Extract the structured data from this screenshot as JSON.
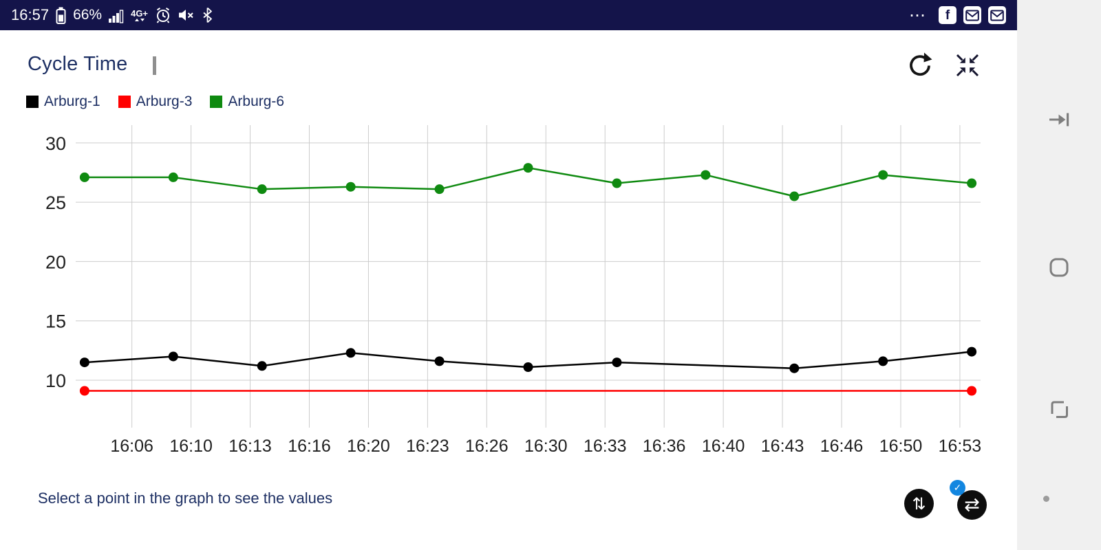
{
  "status_bar": {
    "time": "16:57",
    "battery_percent": "66%",
    "network_label": "4G+",
    "overflow_glyph": "⋯",
    "facebook_glyph": "f"
  },
  "header": {
    "title": "Cycle Time",
    "actions": [
      "refresh",
      "collapse"
    ]
  },
  "legend": [
    {
      "label": "Arburg-1",
      "color": "#000000"
    },
    {
      "label": "Arburg-3",
      "color": "#ff0000"
    },
    {
      "label": "Arburg-6",
      "color": "#0f8a10"
    }
  ],
  "footer": {
    "hint": "Select a point in the graph to see the values",
    "swap_vertical_glyph": "⇅",
    "swap_horizontal_glyph": "⇄",
    "check_glyph": "✓"
  },
  "chart_data": {
    "type": "line",
    "title": "Cycle Time",
    "grid": true,
    "legend_position": "top",
    "x_axis": {
      "type": "time",
      "xlim": [
        "16:03:30",
        "16:54:30"
      ],
      "tick_times": [
        "16:06:40",
        "16:10:00",
        "16:13:20",
        "16:16:40",
        "16:20:00",
        "16:23:20",
        "16:26:40",
        "16:30:00",
        "16:33:20",
        "16:36:40",
        "16:40:00",
        "16:43:20",
        "16:46:40",
        "16:50:00",
        "16:53:20"
      ],
      "tick_labels": [
        "16:06",
        "16:10",
        "16:13",
        "16:16",
        "16:20",
        "16:23",
        "16:26",
        "16:30",
        "16:33",
        "16:36",
        "16:40",
        "16:43",
        "16:46",
        "16:50",
        "16:53"
      ]
    },
    "y_axis": {
      "ticks": [
        10,
        15,
        20,
        25,
        30
      ],
      "ylim": [
        6.0,
        31.5
      ]
    },
    "series": [
      {
        "name": "Arburg-1",
        "color": "#000000",
        "x": [
          "16:04",
          "16:09",
          "16:14",
          "16:19",
          "16:24",
          "16:29",
          "16:34",
          "16:44",
          "16:49",
          "16:54"
        ],
        "values": [
          11.5,
          12.0,
          11.2,
          12.3,
          11.6,
          11.1,
          11.5,
          11.0,
          11.6,
          12.4
        ]
      },
      {
        "name": "Arburg-3",
        "color": "#ff0000",
        "x": [
          "16:04",
          "16:54"
        ],
        "values": [
          9.1,
          9.1
        ]
      },
      {
        "name": "Arburg-6",
        "color": "#0f8a10",
        "x": [
          "16:04",
          "16:09",
          "16:14",
          "16:19",
          "16:24",
          "16:29",
          "16:34",
          "16:39",
          "16:44",
          "16:49",
          "16:54"
        ],
        "values": [
          27.1,
          27.1,
          26.1,
          26.3,
          26.1,
          27.9,
          26.6,
          27.3,
          25.5,
          27.3,
          26.6
        ]
      }
    ]
  }
}
